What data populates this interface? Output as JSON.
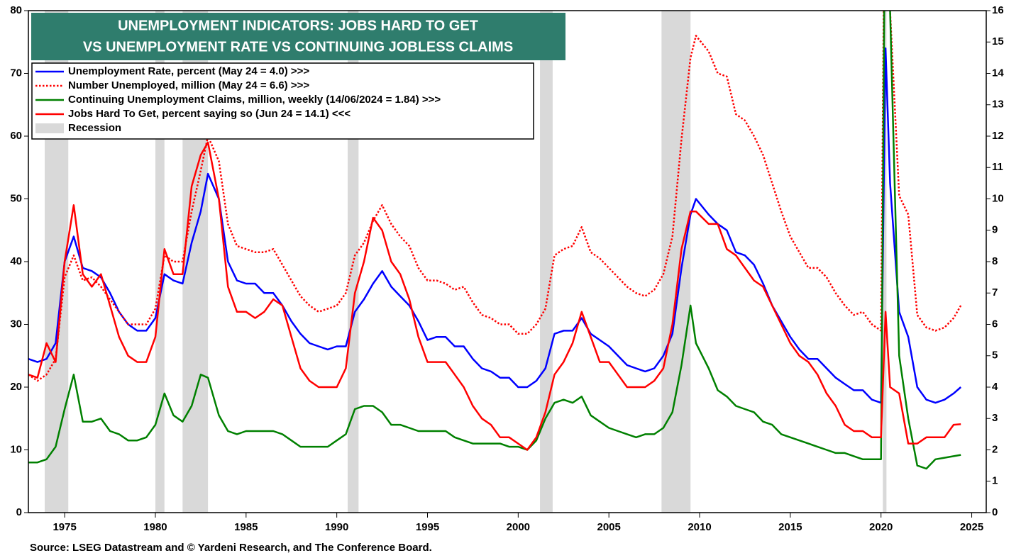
{
  "chart_data": {
    "type": "line",
    "title": [
      "UNEMPLOYMENT INDICATORS: JOBS HARD TO GET",
      "VS UNEMPLOYMENT RATE VS CONTINUING JOBLESS CLAIMS"
    ],
    "source": "Source: LSEG Datastream and © Yardeni Research, and The Conference Board.",
    "xlim": [
      1973,
      2025.8
    ],
    "xticks": [
      1975,
      1980,
      1985,
      1990,
      1995,
      2000,
      2005,
      2010,
      2015,
      2020,
      2025
    ],
    "ylim": [
      0,
      80
    ],
    "yticks": [
      0,
      10,
      20,
      30,
      40,
      50,
      60,
      70,
      80
    ],
    "y2lim": [
      0,
      16
    ],
    "y2ticks": [
      0,
      1,
      2,
      3,
      4,
      5,
      6,
      7,
      8,
      9,
      10,
      11,
      12,
      13,
      14,
      15,
      16
    ],
    "legend": "upper left",
    "recession_name": "Recession",
    "recession_color": "#d9d9d9",
    "recessions": [
      [
        1973.9,
        1975.2
      ],
      [
        1980.0,
        1980.5
      ],
      [
        1981.5,
        1982.9
      ],
      [
        1990.6,
        1991.2
      ],
      [
        2001.2,
        2001.9
      ],
      [
        2007.9,
        2009.5
      ],
      [
        2020.1,
        2020.3
      ]
    ],
    "x": [
      1973.0,
      1973.5,
      1974.0,
      1974.5,
      1975.0,
      1975.5,
      1976.0,
      1976.5,
      1977.0,
      1977.5,
      1978.0,
      1978.5,
      1979.0,
      1979.5,
      1980.0,
      1980.5,
      1981.0,
      1981.5,
      1982.0,
      1982.5,
      1982.9,
      1983.5,
      1984.0,
      1984.5,
      1985.0,
      1985.5,
      1986.0,
      1986.5,
      1987.0,
      1987.5,
      1988.0,
      1988.5,
      1989.0,
      1989.5,
      1990.0,
      1990.5,
      1991.0,
      1991.5,
      1992.0,
      1992.5,
      1993.0,
      1993.5,
      1994.0,
      1994.5,
      1995.0,
      1995.5,
      1996.0,
      1996.5,
      1997.0,
      1997.5,
      1998.0,
      1998.5,
      1999.0,
      1999.5,
      2000.0,
      2000.5,
      2001.0,
      2001.5,
      2002.0,
      2002.5,
      2003.0,
      2003.5,
      2004.0,
      2004.5,
      2005.0,
      2005.5,
      2006.0,
      2006.5,
      2007.0,
      2007.5,
      2008.0,
      2008.5,
      2009.0,
      2009.5,
      2009.8,
      2010.5,
      2011.0,
      2011.5,
      2012.0,
      2012.5,
      2013.0,
      2013.5,
      2014.0,
      2014.5,
      2015.0,
      2015.5,
      2016.0,
      2016.5,
      2017.0,
      2017.5,
      2018.0,
      2018.5,
      2019.0,
      2019.5,
      2020.0,
      2020.25,
      2020.5,
      2021.0,
      2021.5,
      2022.0,
      2022.5,
      2023.0,
      2023.5,
      2024.0,
      2024.4
    ],
    "series": [
      {
        "name": "Unemployment Rate, percent (May 24 = 4.0) >>>",
        "color": "#0000ff",
        "axis": "y2",
        "dash": "none",
        "values": [
          4.9,
          4.8,
          4.9,
          5.4,
          8.0,
          8.8,
          7.8,
          7.7,
          7.5,
          7.0,
          6.4,
          6.0,
          5.8,
          5.8,
          6.2,
          7.6,
          7.4,
          7.3,
          8.6,
          9.6,
          10.8,
          10.0,
          8.0,
          7.4,
          7.3,
          7.3,
          7.0,
          7.0,
          6.6,
          6.1,
          5.7,
          5.4,
          5.3,
          5.2,
          5.3,
          5.3,
          6.4,
          6.8,
          7.3,
          7.7,
          7.2,
          6.9,
          6.6,
          6.1,
          5.5,
          5.6,
          5.6,
          5.3,
          5.3,
          4.9,
          4.6,
          4.5,
          4.3,
          4.3,
          4.0,
          4.0,
          4.2,
          4.6,
          5.7,
          5.8,
          5.8,
          6.2,
          5.7,
          5.5,
          5.3,
          5.0,
          4.7,
          4.6,
          4.5,
          4.6,
          5.0,
          5.7,
          7.8,
          9.5,
          10.0,
          9.5,
          9.2,
          9.0,
          8.3,
          8.2,
          7.9,
          7.3,
          6.6,
          6.1,
          5.6,
          5.2,
          4.9,
          4.9,
          4.6,
          4.3,
          4.1,
          3.9,
          3.9,
          3.6,
          3.5,
          14.8,
          10.5,
          6.4,
          5.6,
          4.0,
          3.6,
          3.5,
          3.6,
          3.8,
          4.0
        ]
      },
      {
        "name": "Number Unemployed, million (May 24 = 6.6) >>>",
        "color": "#ff0000",
        "axis": "y2",
        "dash": "dotted",
        "values": [
          4.4,
          4.2,
          4.4,
          4.9,
          7.5,
          8.2,
          7.4,
          7.5,
          7.2,
          6.8,
          6.4,
          6.0,
          6.0,
          6.0,
          6.5,
          8.2,
          8.0,
          8.0,
          9.6,
          10.9,
          12.0,
          11.2,
          9.2,
          8.5,
          8.4,
          8.3,
          8.3,
          8.4,
          7.9,
          7.4,
          6.9,
          6.6,
          6.4,
          6.5,
          6.6,
          7.0,
          8.2,
          8.6,
          9.3,
          9.8,
          9.2,
          8.8,
          8.5,
          7.8,
          7.4,
          7.4,
          7.3,
          7.1,
          7.2,
          6.7,
          6.3,
          6.2,
          6.0,
          6.0,
          5.7,
          5.7,
          6.0,
          6.5,
          8.2,
          8.4,
          8.5,
          9.1,
          8.3,
          8.1,
          7.8,
          7.5,
          7.2,
          7.0,
          6.9,
          7.1,
          7.6,
          8.8,
          11.9,
          14.5,
          15.2,
          14.7,
          14.0,
          13.9,
          12.7,
          12.5,
          12.0,
          11.4,
          10.5,
          9.6,
          8.8,
          8.3,
          7.8,
          7.8,
          7.5,
          7.0,
          6.6,
          6.3,
          6.4,
          6.0,
          5.8,
          23.1,
          16.0,
          10.1,
          9.5,
          6.3,
          5.9,
          5.8,
          5.9,
          6.2,
          6.6
        ]
      },
      {
        "name": "Continuing Unemployment Claims, million, weekly (14/06/2024 = 1.84) >>>",
        "color": "#008000",
        "axis": "y2",
        "dash": "none",
        "values": [
          1.6,
          1.6,
          1.7,
          2.1,
          3.3,
          4.4,
          2.9,
          2.9,
          3.0,
          2.6,
          2.5,
          2.3,
          2.3,
          2.4,
          2.8,
          3.8,
          3.1,
          2.9,
          3.4,
          4.4,
          4.3,
          3.1,
          2.6,
          2.5,
          2.6,
          2.6,
          2.6,
          2.6,
          2.5,
          2.3,
          2.1,
          2.1,
          2.1,
          2.1,
          2.3,
          2.5,
          3.3,
          3.4,
          3.4,
          3.2,
          2.8,
          2.8,
          2.7,
          2.6,
          2.6,
          2.6,
          2.6,
          2.4,
          2.3,
          2.2,
          2.2,
          2.2,
          2.2,
          2.1,
          2.1,
          2.0,
          2.3,
          3.0,
          3.5,
          3.6,
          3.5,
          3.7,
          3.1,
          2.9,
          2.7,
          2.6,
          2.5,
          2.4,
          2.5,
          2.5,
          2.7,
          3.2,
          4.7,
          6.6,
          5.4,
          4.6,
          3.9,
          3.7,
          3.4,
          3.3,
          3.2,
          2.9,
          2.8,
          2.5,
          2.4,
          2.3,
          2.2,
          2.1,
          2.0,
          1.9,
          1.9,
          1.8,
          1.7,
          1.7,
          1.7,
          22.0,
          16.0,
          5.0,
          3.0,
          1.5,
          1.4,
          1.7,
          1.75,
          1.8,
          1.84
        ]
      },
      {
        "name": "Jobs Hard To Get, percent saying so (Jun 24 = 14.1) <<<",
        "color": "#ff0000",
        "axis": "y",
        "dash": "none",
        "values": [
          22,
          21.5,
          27,
          24,
          40,
          49,
          38,
          36,
          38,
          33,
          28,
          25,
          24,
          24,
          28,
          42,
          38,
          38,
          52,
          57,
          59,
          50,
          36,
          32,
          32,
          31,
          32,
          34,
          33,
          28,
          23,
          21,
          20,
          20,
          20,
          23,
          35,
          40,
          47,
          45,
          40,
          38,
          34,
          28,
          24,
          24,
          24,
          22,
          20,
          17,
          15,
          14,
          12,
          12,
          11,
          10,
          12,
          16,
          22,
          24,
          27,
          32,
          28,
          24,
          24,
          22,
          20,
          20,
          20,
          21,
          23,
          30,
          42,
          48,
          48,
          46,
          46,
          42,
          41,
          39,
          37,
          36,
          33,
          30,
          27,
          25,
          24,
          22,
          19,
          17,
          14,
          13,
          13,
          12,
          12,
          32,
          20,
          19,
          11,
          11,
          12,
          12,
          12,
          14,
          14.1
        ]
      }
    ]
  }
}
